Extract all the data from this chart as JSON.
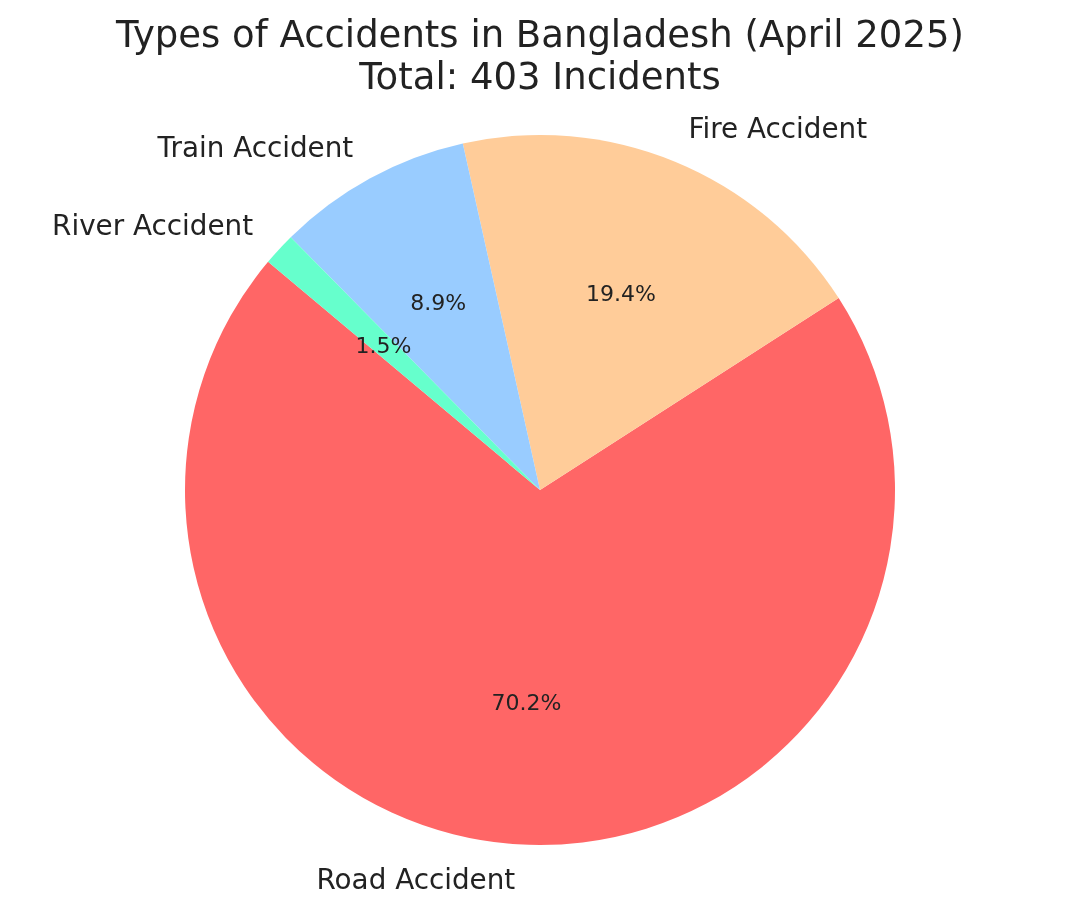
{
  "chart_data": {
    "type": "pie",
    "title": "Types of Accidents in Bangladesh (April 2025)",
    "subtitle": "Total: 403 Incidents",
    "categories": [
      "Road Accident",
      "Fire Accident",
      "Train Accident",
      "River Accident"
    ],
    "values": [
      70.2,
      19.4,
      8.9,
      1.5
    ],
    "colors": [
      "#ff6666",
      "#ffcc99",
      "#99ccff",
      "#66ffcc"
    ],
    "value_labels": [
      "70.2%",
      "19.4%",
      "8.9%",
      "1.5%"
    ]
  }
}
